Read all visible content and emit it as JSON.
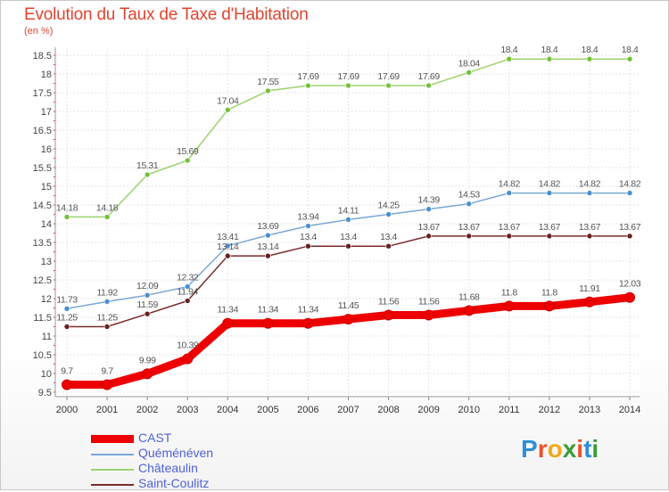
{
  "title": "Evolution du Taux de Taxe d'Habitation",
  "unit": "(en %)",
  "logo": {
    "text": "Proxiti",
    "colors": [
      "#2f8fd6",
      "#e8532b",
      "#f2a81d",
      "#3b9c3b",
      "#e8532b",
      "#2f8fd6",
      "#3b9c3b"
    ]
  },
  "chart_data": {
    "type": "line",
    "x": [
      2000,
      2001,
      2002,
      2003,
      2004,
      2005,
      2006,
      2007,
      2008,
      2009,
      2010,
      2011,
      2012,
      2013,
      2014
    ],
    "ylim": [
      9.5,
      18.5
    ],
    "yticks": [
      9.5,
      10,
      10.5,
      11,
      11.5,
      12,
      12.5,
      13,
      13.5,
      14,
      14.5,
      15,
      15.5,
      16,
      16.5,
      17,
      17.5,
      18,
      18.5
    ],
    "ytick_labels": [
      "9.5",
      "10",
      "10.5",
      "11",
      "11.5",
      "12",
      "12.5",
      "13",
      "13.5",
      "14",
      "14.5",
      "15",
      "15.5",
      "16",
      "16.5",
      "17",
      "17.5",
      "18",
      "18.5"
    ],
    "grid": true,
    "legend_position": "bottom-left",
    "series": [
      {
        "name": "CAST",
        "color": "#ee0000",
        "marker": "#ee0000",
        "bold": true,
        "values": [
          9.7,
          9.7,
          9.99,
          10.39,
          11.34,
          11.34,
          11.34,
          11.45,
          11.56,
          11.56,
          11.68,
          11.8,
          11.8,
          11.91,
          12.03
        ],
        "labels": [
          "9.7",
          "9.7",
          "9.99",
          "10.39",
          "11.34",
          "11.34",
          "11.34",
          "11.45",
          "11.56",
          "11.56",
          "11.68",
          "11.8",
          "11.8",
          "11.91",
          "12.03"
        ]
      },
      {
        "name": "Quéménéven",
        "color": "#7aa8d4",
        "marker": "#4a8fd0",
        "values": [
          11.73,
          11.92,
          12.09,
          12.32,
          13.41,
          13.69,
          13.94,
          14.11,
          14.25,
          14.39,
          14.53,
          14.82,
          14.82,
          14.82,
          14.82
        ],
        "labels": [
          "11.73",
          "11.92",
          "12.09",
          "12.32",
          "13.41",
          "13.69",
          "13.94",
          "14.11",
          "14.25",
          "14.39",
          "14.53",
          "14.82",
          "14.82",
          "14.82",
          "14.82"
        ]
      },
      {
        "name": "Châteaulin",
        "color": "#9bd36b",
        "marker": "#72c23a",
        "values": [
          14.18,
          14.18,
          15.31,
          15.69,
          17.04,
          17.55,
          17.69,
          17.69,
          17.69,
          17.69,
          18.04,
          18.4,
          18.4,
          18.4,
          18.4
        ],
        "labels": [
          "14.18",
          "14.18",
          "15.31",
          "15.69",
          "17.04",
          "17.55",
          "17.69",
          "17.69",
          "17.69",
          "17.69",
          "18.04",
          "18.4",
          "18.4",
          "18.4",
          "18.4"
        ]
      },
      {
        "name": "Saint-Coulitz",
        "color": "#7a2a2a",
        "marker": "#6a1f1f",
        "values": [
          11.25,
          11.25,
          11.59,
          11.94,
          13.14,
          13.14,
          13.4,
          13.4,
          13.4,
          13.67,
          13.67,
          13.67,
          13.67,
          13.67,
          13.67
        ],
        "labels": [
          "11.25",
          "11.25",
          "11.59",
          "11.94",
          "13.14",
          "13.14",
          "13.4",
          "13.4",
          "13.4",
          "13.67",
          "13.67",
          "13.67",
          "13.67",
          "13.67",
          "13.67"
        ]
      }
    ]
  }
}
